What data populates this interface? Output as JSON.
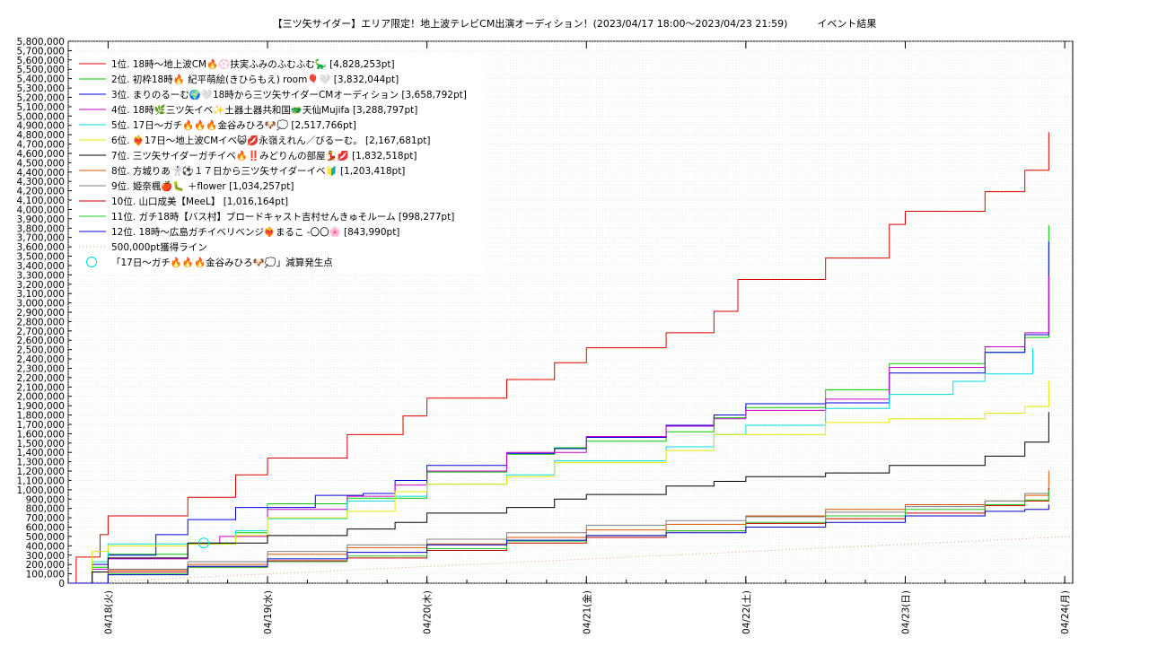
{
  "chart_data": {
    "type": "line",
    "title": "【三ツ矢サイダー】エリア限定！地上波テレビCM出演オーディション！(2023/04/17 18:00〜2023/04/23 21:59)　　　イベント結果",
    "xlabel": "",
    "ylabel": "",
    "x_tick_labels": [
      "04/18(火)",
      "04/19(水)",
      "04/20(木)",
      "04/21(金)",
      "04/22(土)",
      "04/23(日)",
      "04/24(月)"
    ],
    "x_range_days": [
      -0.25,
      6.05
    ],
    "ylim": [
      0,
      5800000
    ],
    "y_ticks": [
      "0",
      "100,000",
      "200,000",
      "300,000",
      "400,000",
      "500,000",
      "600,000",
      "700,000",
      "800,000",
      "900,000",
      "1,000,000",
      "1,100,000",
      "1,200,000",
      "1,300,000",
      "1,400,000",
      "1,500,000",
      "1,600,000",
      "1,700,000",
      "1,800,000",
      "1,900,000",
      "2,000,000",
      "2,100,000",
      "2,200,000",
      "2,300,000",
      "2,400,000",
      "2,500,000",
      "2,600,000",
      "2,700,000",
      "2,800,000",
      "2,900,000",
      "3,000,000",
      "3,100,000",
      "3,200,000",
      "3,300,000",
      "3,400,000",
      "3,500,000",
      "3,600,000",
      "3,700,000",
      "3,800,000",
      "3,900,000",
      "4,000,000",
      "4,100,000",
      "4,200,000",
      "4,300,000",
      "4,400,000",
      "4,500,000",
      "4,600,000",
      "4,700,000",
      "4,800,000",
      "4,900,000",
      "5,000,000",
      "5,100,000",
      "5,200,000",
      "5,300,000",
      "5,400,000",
      "5,500,000",
      "5,600,000",
      "5,700,000",
      "5,800,000"
    ],
    "grid": true,
    "legend_position": "top-left",
    "series": [
      {
        "name": "1位. 18時〜地上波CM🔥💮扶実ふみのふむふむ🦕 [4,828,253pt]",
        "color": "#dd0000",
        "points": [
          [
            -0.25,
            0
          ],
          [
            -0.2,
            280000
          ],
          [
            -0.05,
            520000
          ],
          [
            0.0,
            720000
          ],
          [
            0.5,
            920000
          ],
          [
            0.8,
            1160000
          ],
          [
            1.0,
            1340000
          ],
          [
            1.5,
            1590000
          ],
          [
            1.85,
            1790000
          ],
          [
            2.0,
            1980000
          ],
          [
            2.5,
            2180000
          ],
          [
            2.8,
            2360000
          ],
          [
            3.0,
            2520000
          ],
          [
            3.5,
            2680000
          ],
          [
            3.8,
            2910000
          ],
          [
            3.95,
            3250000
          ],
          [
            4.5,
            3480000
          ],
          [
            4.9,
            3840000
          ],
          [
            5.0,
            3980000
          ],
          [
            5.5,
            4190000
          ],
          [
            5.75,
            4420000
          ],
          [
            5.9,
            4828253
          ]
        ]
      },
      {
        "name": "2位. 初枠18時🔥 紀平萌絵(きひらもえ) room🎈🤍 [3,832,044pt]",
        "color": "#00cc00",
        "points": [
          [
            -0.25,
            0
          ],
          [
            -0.1,
            170000
          ],
          [
            0.0,
            310000
          ],
          [
            0.5,
            420000
          ],
          [
            0.8,
            540000
          ],
          [
            1.0,
            850000
          ],
          [
            1.5,
            910000
          ],
          [
            2.0,
            1190000
          ],
          [
            2.5,
            1380000
          ],
          [
            2.8,
            1450000
          ],
          [
            3.0,
            1520000
          ],
          [
            3.5,
            1620000
          ],
          [
            3.8,
            1770000
          ],
          [
            4.0,
            1880000
          ],
          [
            4.5,
            2070000
          ],
          [
            4.9,
            2350000
          ],
          [
            5.5,
            2470000
          ],
          [
            5.75,
            2630000
          ],
          [
            5.9,
            3832044
          ]
        ]
      },
      {
        "name": "3位. まりのるーむ🌍🤍18時から三ツ矢サイダーCMオーディション [3,658,792pt]",
        "color": "#0000dd",
        "points": [
          [
            -0.25,
            0
          ],
          [
            -0.1,
            200000
          ],
          [
            0.0,
            300000
          ],
          [
            0.3,
            520000
          ],
          [
            0.5,
            680000
          ],
          [
            0.8,
            810000
          ],
          [
            1.0,
            810000
          ],
          [
            1.3,
            940000
          ],
          [
            1.6,
            960000
          ],
          [
            1.8,
            1100000
          ],
          [
            2.0,
            1260000
          ],
          [
            2.5,
            1390000
          ],
          [
            2.8,
            1440000
          ],
          [
            3.0,
            1560000
          ],
          [
            3.5,
            1690000
          ],
          [
            3.8,
            1800000
          ],
          [
            4.0,
            1920000
          ],
          [
            4.5,
            1930000
          ],
          [
            4.9,
            2250000
          ],
          [
            5.5,
            2470000
          ],
          [
            5.75,
            2660000
          ],
          [
            5.9,
            3658792
          ]
        ]
      },
      {
        "name": "4位. 18時🌿三ツ矢イベ✨土器土器共和国🐲天仙Mujifa [3,288,797pt]",
        "color": "#cc00cc",
        "points": [
          [
            -0.25,
            0
          ],
          [
            -0.1,
            150000
          ],
          [
            0.0,
            260000
          ],
          [
            0.5,
            420000
          ],
          [
            0.7,
            500000
          ],
          [
            1.0,
            790000
          ],
          [
            1.5,
            930000
          ],
          [
            1.8,
            1050000
          ],
          [
            2.0,
            1200000
          ],
          [
            2.5,
            1400000
          ],
          [
            3.0,
            1570000
          ],
          [
            3.5,
            1680000
          ],
          [
            3.8,
            1760000
          ],
          [
            4.0,
            1850000
          ],
          [
            4.5,
            1970000
          ],
          [
            4.9,
            2310000
          ],
          [
            5.5,
            2530000
          ],
          [
            5.75,
            2680000
          ],
          [
            5.9,
            3288797
          ]
        ]
      },
      {
        "name": "5位. 17日〜ガチ🔥🔥🔥金谷みひろ🐶💭 [2,517,766pt]",
        "color": "#00dddd",
        "points": [
          [
            -0.25,
            0
          ],
          [
            -0.1,
            230000
          ],
          [
            0.0,
            420000
          ],
          [
            0.5,
            430000
          ],
          [
            0.8,
            560000
          ],
          [
            1.0,
            690000
          ],
          [
            1.5,
            880000
          ],
          [
            1.8,
            930000
          ],
          [
            2.0,
            1060000
          ],
          [
            2.5,
            1160000
          ],
          [
            2.8,
            1310000
          ],
          [
            3.0,
            1310000
          ],
          [
            3.5,
            1460000
          ],
          [
            3.8,
            1590000
          ],
          [
            4.0,
            1690000
          ],
          [
            4.5,
            1870000
          ],
          [
            4.9,
            2020000
          ],
          [
            5.3,
            2160000
          ],
          [
            5.5,
            2240000
          ],
          [
            5.8,
            2517766
          ]
        ]
      },
      {
        "name": "6位. ❤️‍🔥17日〜地上波CMイベ😺💋永嶺えれん／びるーむ。 [2,167,681pt]",
        "color": "#e8e800",
        "points": [
          [
            -0.25,
            0
          ],
          [
            -0.1,
            340000
          ],
          [
            0.0,
            400000
          ],
          [
            0.5,
            420000
          ],
          [
            0.8,
            510000
          ],
          [
            1.0,
            700000
          ],
          [
            1.5,
            770000
          ],
          [
            1.8,
            980000
          ],
          [
            2.0,
            1060000
          ],
          [
            2.5,
            1140000
          ],
          [
            2.8,
            1290000
          ],
          [
            3.0,
            1290000
          ],
          [
            3.5,
            1420000
          ],
          [
            3.8,
            1590000
          ],
          [
            4.0,
            1590000
          ],
          [
            4.5,
            1720000
          ],
          [
            4.9,
            1760000
          ],
          [
            5.5,
            1820000
          ],
          [
            5.75,
            1890000
          ],
          [
            5.9,
            2167681
          ]
        ]
      },
      {
        "name": "7位. 三ツ矢サイダーガチイベ🔥‼️みどりんの部屋💃💋 [1,832,518pt]",
        "color": "#000000",
        "points": [
          [
            -0.25,
            0
          ],
          [
            -0.1,
            120000
          ],
          [
            0.0,
            270000
          ],
          [
            0.5,
            430000
          ],
          [
            1.0,
            510000
          ],
          [
            1.5,
            580000
          ],
          [
            1.8,
            650000
          ],
          [
            2.0,
            750000
          ],
          [
            2.5,
            810000
          ],
          [
            2.8,
            900000
          ],
          [
            3.0,
            950000
          ],
          [
            3.5,
            1040000
          ],
          [
            3.8,
            1090000
          ],
          [
            4.0,
            1140000
          ],
          [
            4.5,
            1180000
          ],
          [
            4.9,
            1260000
          ],
          [
            5.5,
            1360000
          ],
          [
            5.75,
            1510000
          ],
          [
            5.9,
            1832518
          ]
        ]
      },
      {
        "name": "8位. 方城りあ🤺⚽１７日から三ツ矢サイダーイベ🔰 [1,203,418pt]",
        "color": "#dd5500",
        "points": [
          [
            -0.25,
            0
          ],
          [
            0.0,
            140000
          ],
          [
            0.5,
            200000
          ],
          [
            1.0,
            310000
          ],
          [
            1.5,
            380000
          ],
          [
            2.0,
            420000
          ],
          [
            2.5,
            490000
          ],
          [
            3.0,
            570000
          ],
          [
            3.5,
            630000
          ],
          [
            4.0,
            720000
          ],
          [
            4.5,
            790000
          ],
          [
            5.0,
            840000
          ],
          [
            5.5,
            880000
          ],
          [
            5.75,
            940000
          ],
          [
            5.9,
            1203418
          ]
        ]
      },
      {
        "name": "9位. 姫奈楓🍎🐛 ＋flower [1,034,257pt]",
        "color": "#808080",
        "points": [
          [
            -0.25,
            0
          ],
          [
            0.0,
            150000
          ],
          [
            0.5,
            230000
          ],
          [
            1.0,
            340000
          ],
          [
            1.5,
            410000
          ],
          [
            2.0,
            470000
          ],
          [
            2.5,
            540000
          ],
          [
            3.0,
            620000
          ],
          [
            3.5,
            670000
          ],
          [
            4.0,
            710000
          ],
          [
            4.5,
            760000
          ],
          [
            5.0,
            820000
          ],
          [
            5.5,
            880000
          ],
          [
            5.75,
            960000
          ],
          [
            5.9,
            1034257
          ]
        ]
      },
      {
        "name": "10位. 山口成美【MeeL】 [1,016,164pt]",
        "color": "#cc0000",
        "points": [
          [
            -0.25,
            0
          ],
          [
            0.0,
            120000
          ],
          [
            0.5,
            170000
          ],
          [
            1.0,
            240000
          ],
          [
            1.5,
            270000
          ],
          [
            2.0,
            350000
          ],
          [
            2.5,
            430000
          ],
          [
            3.0,
            490000
          ],
          [
            3.5,
            560000
          ],
          [
            4.0,
            640000
          ],
          [
            4.5,
            690000
          ],
          [
            5.0,
            750000
          ],
          [
            5.5,
            830000
          ],
          [
            5.75,
            880000
          ],
          [
            5.9,
            1016164
          ]
        ]
      },
      {
        "name": "11位. ガチ18時【バス村】ブロードキャスト吉村せんきゅそルーム [998,277pt]",
        "color": "#22cc22",
        "points": [
          [
            -0.25,
            0
          ],
          [
            0.0,
            100000
          ],
          [
            0.5,
            170000
          ],
          [
            1.0,
            230000
          ],
          [
            1.5,
            290000
          ],
          [
            2.0,
            370000
          ],
          [
            2.5,
            450000
          ],
          [
            3.0,
            510000
          ],
          [
            3.5,
            560000
          ],
          [
            4.0,
            650000
          ],
          [
            4.5,
            720000
          ],
          [
            5.0,
            790000
          ],
          [
            5.5,
            840000
          ],
          [
            5.75,
            890000
          ],
          [
            5.9,
            998277
          ]
        ]
      },
      {
        "name": "12位. 18時〜広島ガチイベリベンジ❤️‍🔥まるこ -〇〇🌸 [843,990pt]",
        "color": "#0000cc",
        "points": [
          [
            -0.25,
            0
          ],
          [
            0.0,
            90000
          ],
          [
            0.5,
            180000
          ],
          [
            1.0,
            260000
          ],
          [
            1.5,
            330000
          ],
          [
            2.0,
            410000
          ],
          [
            2.5,
            460000
          ],
          [
            3.0,
            510000
          ],
          [
            3.5,
            540000
          ],
          [
            4.0,
            600000
          ],
          [
            4.5,
            650000
          ],
          [
            5.0,
            720000
          ],
          [
            5.5,
            770000
          ],
          [
            5.75,
            790000
          ],
          [
            5.9,
            843990
          ]
        ]
      }
    ],
    "reference_line": {
      "name": "500,000pt獲得ライン",
      "color": "#f0a070",
      "points": [
        [
          -0.25,
          0
        ],
        [
          6.05,
          500000
        ]
      ]
    },
    "marker": {
      "name": "「17日〜ガチ🔥🔥🔥金谷みひろ🐶💭」減算発生点",
      "color": "#00dddd",
      "point": [
        0.6,
        430000
      ]
    }
  }
}
